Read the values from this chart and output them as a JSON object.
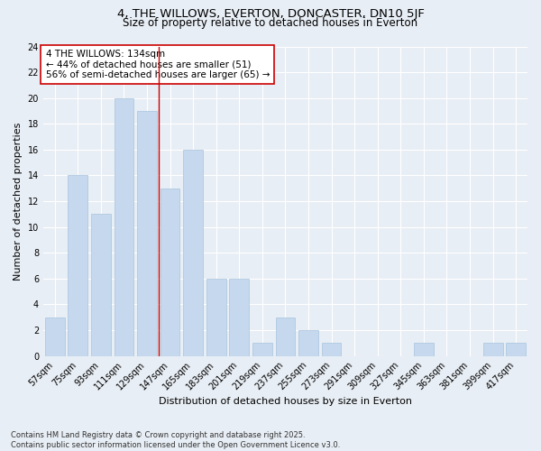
{
  "title": "4, THE WILLOWS, EVERTON, DONCASTER, DN10 5JF",
  "subtitle": "Size of property relative to detached houses in Everton",
  "xlabel": "Distribution of detached houses by size in Everton",
  "ylabel": "Number of detached properties",
  "bar_color": "#c5d8ed",
  "bar_edge_color": "#a8c4de",
  "background_color": "#e8eef5",
  "grid_color": "#ffffff",
  "categories": [
    "57sqm",
    "75sqm",
    "93sqm",
    "111sqm",
    "129sqm",
    "147sqm",
    "165sqm",
    "183sqm",
    "201sqm",
    "219sqm",
    "237sqm",
    "255sqm",
    "273sqm",
    "291sqm",
    "309sqm",
    "327sqm",
    "345sqm",
    "363sqm",
    "381sqm",
    "399sqm",
    "417sqm"
  ],
  "values": [
    3,
    14,
    11,
    20,
    19,
    13,
    16,
    6,
    6,
    1,
    3,
    2,
    1,
    0,
    0,
    0,
    1,
    0,
    0,
    1,
    1
  ],
  "ylim": [
    0,
    24
  ],
  "yticks": [
    0,
    2,
    4,
    6,
    8,
    10,
    12,
    14,
    16,
    18,
    20,
    22,
    24
  ],
  "vline_x": 4.5,
  "vline_color": "#cc0000",
  "annotation_text": "4 THE WILLOWS: 134sqm\n← 44% of detached houses are smaller (51)\n56% of semi-detached houses are larger (65) →",
  "annotation_box_color": "#ffffff",
  "annotation_box_edge": "#cc0000",
  "footnote": "Contains HM Land Registry data © Crown copyright and database right 2025.\nContains public sector information licensed under the Open Government Licence v3.0.",
  "title_fontsize": 9.5,
  "subtitle_fontsize": 8.5,
  "tick_fontsize": 7,
  "xlabel_fontsize": 8,
  "ylabel_fontsize": 8,
  "annotation_fontsize": 7.5,
  "footnote_fontsize": 6
}
